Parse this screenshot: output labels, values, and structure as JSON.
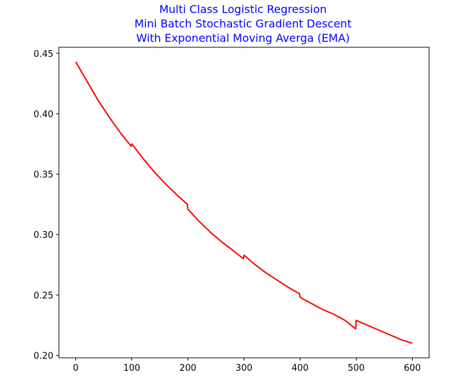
{
  "chart_data": {
    "type": "line",
    "title_lines": [
      "Multi Class Logistic Regression",
      "Mini Batch Stochastic Gradient Descent",
      "With Exponential Moving Averga (EMA)"
    ],
    "title_color": "#0000ff",
    "xlabel": "",
    "ylabel": "",
    "xlim": [
      -30,
      630
    ],
    "ylim": [
      0.198,
      0.455
    ],
    "x_ticks": [
      0,
      100,
      200,
      300,
      400,
      500,
      600
    ],
    "x_tick_labels": [
      "0",
      "100",
      "200",
      "300",
      "400",
      "500",
      "600"
    ],
    "y_ticks": [
      0.2,
      0.25,
      0.3,
      0.35,
      0.4,
      0.45
    ],
    "y_tick_labels": [
      "0.20",
      "0.25",
      "0.30",
      "0.35",
      "0.40",
      "0.45"
    ],
    "grid": false,
    "series": [
      {
        "color": "#ff0000",
        "x": [
          0,
          20,
          40,
          60,
          80,
          99,
          100,
          120,
          140,
          160,
          180,
          199,
          200,
          220,
          240,
          260,
          280,
          299,
          300,
          320,
          340,
          360,
          380,
          399,
          400,
          420,
          440,
          460,
          480,
          499,
          500,
          520,
          540,
          560,
          580,
          600
        ],
        "y": [
          0.443,
          0.427,
          0.411,
          0.397,
          0.384,
          0.373,
          0.375,
          0.363,
          0.352,
          0.342,
          0.333,
          0.325,
          0.321,
          0.311,
          0.302,
          0.294,
          0.287,
          0.28,
          0.283,
          0.275,
          0.268,
          0.262,
          0.256,
          0.251,
          0.248,
          0.243,
          0.238,
          0.234,
          0.229,
          0.222,
          0.229,
          0.225,
          0.221,
          0.217,
          0.213,
          0.21
        ]
      }
    ]
  }
}
